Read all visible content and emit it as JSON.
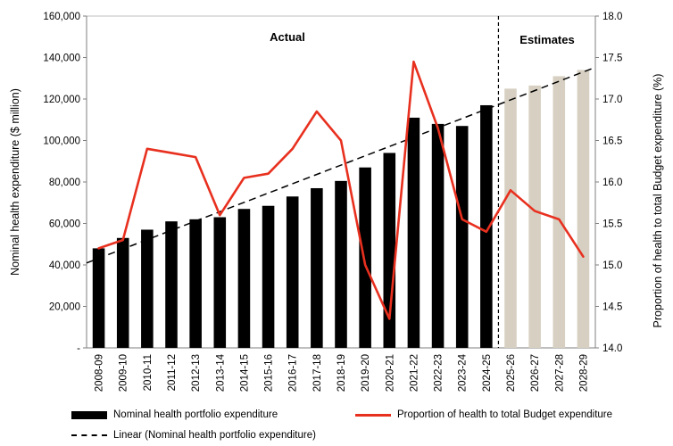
{
  "chart_data": {
    "type": "bar",
    "combo": "bar+line+linear-trend",
    "categories": [
      "2008-09",
      "2009-10",
      "2010-11",
      "2011-12",
      "2012-13",
      "2013-14",
      "2014-15",
      "2015-16",
      "2016-17",
      "2017-18",
      "2018-19",
      "2019-20",
      "2020-21",
      "2021-22",
      "2022-23",
      "2023-24",
      "2024-25",
      "2025-26",
      "2026-27",
      "2027-28",
      "2028-29"
    ],
    "series": [
      {
        "name": "Nominal health portfolio expenditure",
        "type": "bar",
        "axis": "left",
        "values": [
          48000,
          53000,
          57000,
          61000,
          62000,
          63000,
          67000,
          68500,
          73000,
          77000,
          80500,
          87000,
          94000,
          111000,
          108000,
          107000,
          117000,
          125000,
          126500,
          131000,
          134000
        ]
      },
      {
        "name": "Proportion of health to total Budget expenditure",
        "type": "line",
        "axis": "right",
        "values": [
          15.2,
          15.3,
          16.4,
          16.35,
          16.3,
          15.6,
          16.05,
          16.1,
          16.4,
          16.85,
          16.5,
          15.0,
          14.35,
          17.45,
          16.65,
          15.55,
          15.4,
          15.9,
          15.65,
          15.55,
          15.1
        ]
      },
      {
        "name": "Linear (Nominal health portfolio expenditure)",
        "type": "linear_trend",
        "of_series": 0,
        "axis": "left"
      }
    ],
    "estimates_start_category": "2025-26",
    "annotations": {
      "actual": "Actual",
      "estimates": "Estimates"
    },
    "left_axis": {
      "label": "Nominal health expenditure ($ million)",
      "min": 0,
      "max": 160000,
      "tick_step": 20000,
      "tick_labels": [
        "-",
        "20,000",
        "40,000",
        "60,000",
        "80,000",
        "100,000",
        "120,000",
        "140,000",
        "160,000"
      ]
    },
    "right_axis": {
      "label": "Proportion of health to total Budget expenditure (%)",
      "min": 14.0,
      "max": 18.0,
      "tick_step": 0.5,
      "tick_labels": [
        "14.0",
        "14.5",
        "15.0",
        "15.5",
        "16.0",
        "16.5",
        "17.0",
        "17.5",
        "18.0"
      ]
    },
    "colors": {
      "bar_actual": "#000000",
      "bar_estimate": "#d7d0c2",
      "line": "#e8301f",
      "trend": "#000000",
      "separator": "#000000",
      "plot_border": "#bfbfbf",
      "axis": "#7f7f7f"
    }
  },
  "legend": {
    "items": [
      {
        "label": "Nominal health portfolio expenditure",
        "swatch": "bar"
      },
      {
        "label": "Proportion of health to total Budget expenditure",
        "swatch": "line"
      },
      {
        "label": "Linear (Nominal health portfolio expenditure)",
        "swatch": "dashed-line"
      }
    ]
  }
}
